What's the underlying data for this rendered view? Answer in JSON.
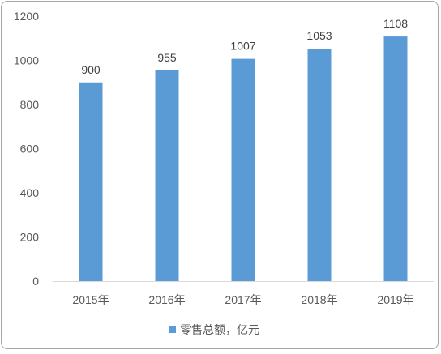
{
  "chart_data": {
    "type": "bar",
    "categories": [
      "2015年",
      "2016年",
      "2017年",
      "2018年",
      "2019年"
    ],
    "series": [
      {
        "name": "零售总额，亿元",
        "values": [
          900,
          955,
          1007,
          1053,
          1108
        ],
        "color": "#5b9bd5"
      }
    ],
    "data_labels": [
      "900",
      "955",
      "1007",
      "1053",
      "1108"
    ],
    "ylim": [
      0,
      1200
    ],
    "yticks": [
      0,
      200,
      400,
      600,
      800,
      1000,
      1200
    ],
    "grid": false,
    "legend_placement": "bottom-center",
    "axis_color": "#d9d9d9",
    "text_color": "#595959"
  }
}
